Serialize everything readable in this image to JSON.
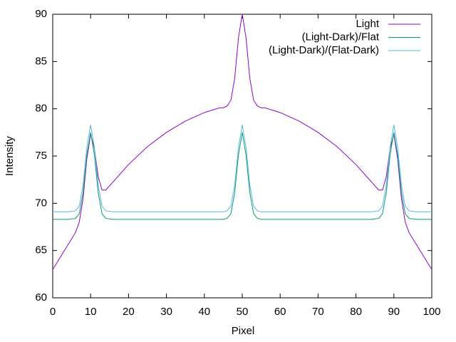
{
  "chart_data": {
    "type": "line",
    "xlabel": "Pixel",
    "ylabel": "Intensity",
    "x": [
      0,
      2,
      4,
      6,
      7,
      8,
      9,
      10,
      11,
      12,
      13,
      14,
      16,
      20,
      25,
      30,
      35,
      40,
      44,
      45,
      46,
      47,
      48,
      49,
      50,
      51,
      52,
      53,
      54,
      55,
      56,
      60,
      65,
      70,
      75,
      80,
      84,
      86,
      87,
      88,
      89,
      90,
      91,
      92,
      93,
      94,
      96,
      98,
      100
    ],
    "series": [
      {
        "name": "Light",
        "color": "#9400d3",
        "values": [
          63.0,
          64.3,
          65.6,
          66.9,
          68.0,
          70.5,
          74.7,
          77.3,
          75.8,
          72.8,
          71.4,
          71.4,
          72.3,
          74.1,
          76.0,
          77.5,
          78.7,
          79.6,
          80.1,
          80.1,
          80.3,
          80.9,
          83.2,
          87.5,
          90.0,
          87.5,
          83.2,
          80.9,
          80.3,
          80.1,
          80.1,
          79.6,
          78.7,
          77.5,
          76.0,
          74.1,
          72.3,
          71.4,
          71.4,
          72.8,
          75.8,
          77.3,
          74.7,
          70.5,
          68.0,
          66.9,
          65.6,
          64.3,
          63.0
        ]
      },
      {
        "name": "(Light-Dark)/Flat",
        "color": "#009e73",
        "values": [
          68.3,
          68.3,
          68.3,
          68.4,
          68.9,
          71.1,
          75.1,
          77.5,
          75.1,
          71.1,
          68.9,
          68.4,
          68.3,
          68.3,
          68.3,
          68.3,
          68.3,
          68.3,
          68.3,
          68.3,
          68.4,
          68.9,
          71.1,
          75.1,
          77.5,
          75.1,
          71.1,
          68.9,
          68.4,
          68.3,
          68.3,
          68.3,
          68.3,
          68.3,
          68.3,
          68.3,
          68.3,
          68.4,
          68.9,
          71.1,
          75.1,
          77.5,
          75.1,
          71.1,
          68.9,
          68.4,
          68.3,
          68.3,
          68.3
        ]
      },
      {
        "name": "(Light-Dark)/(Flat-Dark)",
        "color": "#56b4e9",
        "values": [
          69.1,
          69.1,
          69.1,
          69.2,
          69.7,
          71.9,
          75.9,
          78.3,
          75.9,
          71.9,
          69.7,
          69.2,
          69.1,
          69.1,
          69.1,
          69.1,
          69.1,
          69.1,
          69.1,
          69.1,
          69.2,
          69.7,
          71.9,
          75.9,
          78.3,
          75.9,
          71.9,
          69.7,
          69.2,
          69.1,
          69.1,
          69.1,
          69.1,
          69.1,
          69.1,
          69.1,
          69.1,
          69.2,
          69.7,
          71.9,
          75.9,
          78.3,
          75.9,
          71.9,
          69.7,
          69.2,
          69.1,
          69.1,
          69.1
        ]
      }
    ],
    "xlim": [
      0,
      100
    ],
    "xticks": [
      0,
      10,
      20,
      30,
      40,
      50,
      60,
      70,
      80,
      90,
      100
    ],
    "ylim": [
      60,
      90
    ],
    "yticks": [
      60,
      65,
      70,
      75,
      80,
      85,
      90
    ],
    "legend": "top-right"
  }
}
